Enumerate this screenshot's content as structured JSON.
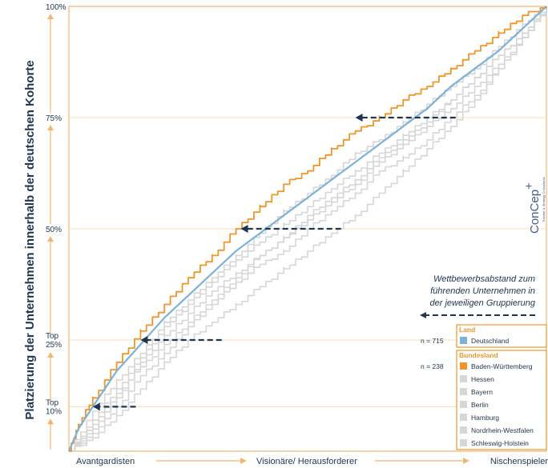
{
  "chart_data": {
    "type": "line",
    "ylabel": "Platzierung der Unternehmen innerhalb der deutschen Kohorte",
    "x_labels": [
      "Avantgardisten",
      "Visionäre/ Herausforderer",
      "Nischenspieler"
    ],
    "y_ticks": [
      {
        "value": 10,
        "lines": [
          "Top",
          "10%"
        ]
      },
      {
        "value": 25,
        "lines": [
          "Top",
          "25%"
        ]
      },
      {
        "value": 50,
        "lines": [
          "50%"
        ]
      },
      {
        "value": 75,
        "lines": [
          "75%"
        ]
      },
      {
        "value": 100,
        "lines": [
          "100%"
        ]
      }
    ],
    "ylim": [
      0,
      100
    ],
    "xlim": [
      0,
      100
    ],
    "series": [
      {
        "name": "Deutschland",
        "group": "Land",
        "color": "#7bb2d9",
        "x": [
          0,
          2,
          5,
          10,
          15,
          20,
          25,
          30,
          35,
          40,
          45,
          50,
          55,
          60,
          65,
          70,
          75,
          80,
          85,
          90,
          95,
          100
        ],
        "y": [
          0,
          5,
          10,
          18,
          24,
          30,
          35,
          40,
          45,
          49,
          53,
          57,
          61,
          65,
          69,
          73,
          77,
          82,
          86,
          90,
          95,
          100
        ]
      },
      {
        "name": "Baden-Württemberg",
        "group": "Bundesland",
        "color": "#f0952a",
        "x": [
          0,
          2,
          5,
          10,
          15,
          20,
          25,
          30,
          35,
          40,
          45,
          50,
          55,
          60,
          65,
          70,
          75,
          80,
          85,
          90,
          95,
          100
        ],
        "y": [
          0,
          6,
          12,
          20,
          27,
          33,
          39,
          44,
          50,
          55,
          60,
          63,
          68,
          72,
          75,
          79,
          82,
          86,
          90,
          94,
          98,
          100
        ]
      },
      {
        "name": "Hessen",
        "group": "Bundesland",
        "color": "#d6d6d6",
        "x": [
          0,
          5,
          10,
          15,
          20,
          25,
          30,
          35,
          40,
          45,
          50,
          55,
          60,
          65,
          70,
          75,
          80,
          85,
          90,
          95,
          100
        ],
        "y": [
          0,
          9,
          16,
          22,
          29,
          34,
          39,
          44,
          49,
          54,
          58,
          62,
          67,
          70,
          74,
          78,
          82,
          86,
          91,
          96,
          100
        ]
      },
      {
        "name": "Bayern",
        "group": "Bundesland",
        "color": "#d6d6d6",
        "x": [
          0,
          5,
          10,
          15,
          20,
          25,
          30,
          35,
          40,
          45,
          50,
          55,
          60,
          65,
          70,
          75,
          80,
          85,
          90,
          95,
          100
        ],
        "y": [
          0,
          7,
          14,
          21,
          28,
          33,
          38,
          43,
          47,
          51,
          55,
          59,
          63,
          67,
          71,
          75,
          79,
          84,
          89,
          94,
          100
        ]
      },
      {
        "name": "Berlin",
        "group": "Bundesland",
        "color": "#d6d6d6",
        "x": [
          0,
          5,
          10,
          15,
          20,
          25,
          30,
          35,
          40,
          45,
          50,
          55,
          60,
          65,
          70,
          75,
          80,
          85,
          90,
          95,
          100
        ],
        "y": [
          0,
          4,
          10,
          17,
          22,
          28,
          33,
          38,
          42,
          45,
          50,
          54,
          58,
          63,
          66,
          70,
          75,
          80,
          86,
          93,
          100
        ]
      },
      {
        "name": "Hamburg",
        "group": "Bundesland",
        "color": "#d6d6d6",
        "x": [
          0,
          5,
          10,
          15,
          20,
          25,
          30,
          35,
          40,
          45,
          50,
          55,
          60,
          65,
          70,
          75,
          80,
          85,
          90,
          95,
          100
        ],
        "y": [
          0,
          5,
          12,
          20,
          26,
          31,
          36,
          40,
          44,
          48,
          52,
          56,
          60,
          65,
          69,
          73,
          77,
          82,
          87,
          93,
          100
        ]
      },
      {
        "name": "Nordrhein-Westfalen",
        "group": "Bundesland",
        "color": "#d6d6d6",
        "x": [
          0,
          5,
          10,
          15,
          20,
          25,
          30,
          35,
          40,
          45,
          50,
          55,
          60,
          65,
          70,
          75,
          80,
          85,
          90,
          95,
          100
        ],
        "y": [
          0,
          6,
          13,
          19,
          24,
          29,
          34,
          39,
          44,
          48,
          53,
          57,
          61,
          66,
          70,
          74,
          79,
          84,
          89,
          94,
          100
        ]
      },
      {
        "name": "Schleswig-Holstein",
        "group": "Bundesland",
        "color": "#d6d6d6",
        "x": [
          0,
          5,
          10,
          15,
          20,
          25,
          30,
          35,
          40,
          45,
          50,
          55,
          60,
          65,
          70,
          75,
          80,
          85,
          90,
          95,
          100
        ],
        "y": [
          0,
          3,
          8,
          14,
          20,
          25,
          29,
          33,
          37,
          41,
          45,
          49,
          53,
          58,
          63,
          68,
          73,
          79,
          86,
          93,
          100
        ]
      }
    ],
    "gap_arrows": [
      {
        "level": 10,
        "x_from": 14,
        "x_to": 5
      },
      {
        "level": 25,
        "x_from": 32,
        "x_to": 15
      },
      {
        "level": 50,
        "x_from": 57,
        "x_to": 36
      },
      {
        "level": 75,
        "x_from": 81,
        "x_to": 60
      }
    ],
    "annotation": [
      "Wettbewerbsabstand zum",
      "führenden Unternehmen in",
      "der jeweiligen Gruppierung"
    ],
    "legend": {
      "position": "bottom-right",
      "sections": [
        {
          "title": "Land",
          "n_label": "n = 715",
          "items": [
            {
              "label": "Deutschland",
              "color": "#7bb2d9"
            }
          ]
        },
        {
          "title": "Bundesland",
          "n_label": "n = 238",
          "items": [
            {
              "label": "Baden-Württemberg",
              "color": "#f0952a"
            },
            {
              "label": "Hessen",
              "color": "#d6d6d6"
            },
            {
              "label": "Bayern",
              "color": "#d6d6d6"
            },
            {
              "label": "Berlin",
              "color": "#d6d6d6"
            },
            {
              "label": "Hamburg",
              "color": "#d6d6d6"
            },
            {
              "label": "Nordrhein-Westfalen",
              "color": "#d6d6d6"
            },
            {
              "label": "Schleswig-Holstein",
              "color": "#d6d6d6"
            }
          ]
        }
      ]
    },
    "colors": {
      "accent": "#f0952a",
      "text": "#1f3550",
      "gridline": "#f7dcb5"
    }
  },
  "brand": {
    "name": "ConCep",
    "superscript": "+",
    "tagline": "Transfer & Strategy Consultants"
  }
}
